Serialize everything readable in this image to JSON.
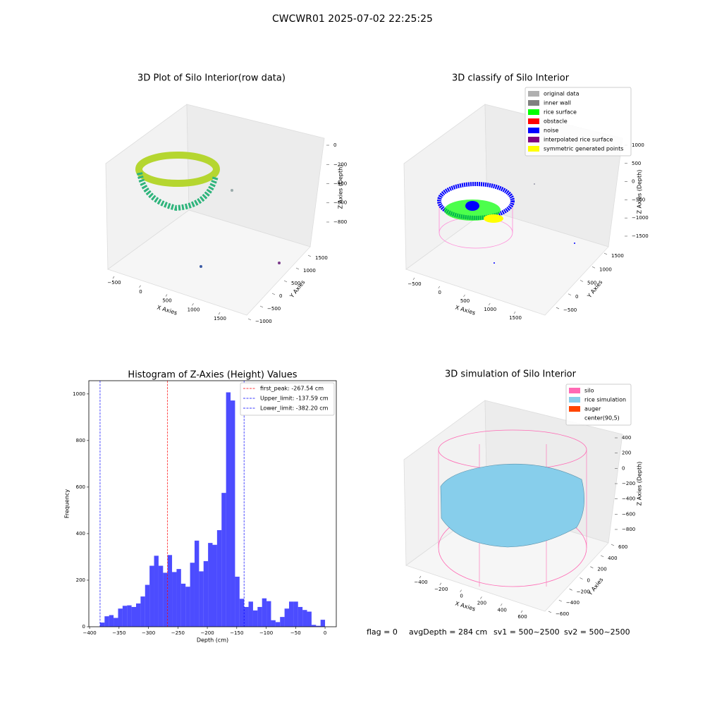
{
  "figure_title": "CWCWR01 2025-07-02 22:25:25",
  "status": [
    "flag = 0",
    "avgDepth = 284 cm",
    "sv1 = 500~2500",
    "sv2 = 500~2500"
  ],
  "chart_data": [
    {
      "type": "scatter3d",
      "title": "3D Plot of Silo Interior(row data)",
      "x_label": "X Axies",
      "y_label": "Y Axies",
      "z_label": "Z Axies (Depth)",
      "xlim": [
        -700,
        1750
      ],
      "ylim": [
        -1100,
        1750
      ],
      "zlim": [
        -900,
        50
      ],
      "xticks": [
        {
          "value": -500,
          "label": "−500"
        },
        0,
        500,
        1000,
        1500
      ],
      "yticks": [
        {
          "value": -1000,
          "label": "−1000"
        },
        {
          "value": -500,
          "label": "−500"
        },
        0,
        500,
        1000,
        1500
      ],
      "zticks": [
        0,
        {
          "value": -200,
          "label": "−200"
        },
        {
          "value": -400,
          "label": "−400"
        },
        {
          "value": -600,
          "label": "−600"
        },
        {
          "value": -800,
          "label": "−800"
        }
      ]
    },
    {
      "type": "scatter3d",
      "title": "3D classify of Silo Interior",
      "x_label": "X Axies",
      "y_label": "Y Axies",
      "z_label": "Z Axies (Depth)",
      "xlim": [
        -700,
        1750
      ],
      "ylim": [
        -800,
        1750
      ],
      "zlim": [
        -1700,
        1300
      ],
      "xticks": [
        {
          "value": -500,
          "label": "−500"
        },
        0,
        500,
        1000,
        1500
      ],
      "yticks": [
        {
          "value": -500,
          "label": "−500"
        },
        0,
        500,
        1000,
        1500
      ],
      "zticks": [
        1000,
        500,
        0,
        {
          "value": -500,
          "label": "−500"
        },
        {
          "value": -1000,
          "label": "−1000"
        },
        {
          "value": -1500,
          "label": "−1500"
        }
      ],
      "legend": [
        {
          "name": "original data",
          "color": "#b0b0b0"
        },
        {
          "name": "inner wall",
          "color": "#808080"
        },
        {
          "name": "rice surface",
          "color": "#00ff00"
        },
        {
          "name": "obstacle",
          "color": "#ff0000"
        },
        {
          "name": "noise",
          "color": "#0000ff"
        },
        {
          "name": "interpolated rice surface",
          "color": "#800080"
        },
        {
          "name": "symmetric generated points",
          "color": "#ffff00"
        }
      ]
    },
    {
      "type": "histogram",
      "title": "Histogram of Z-Axies (Height) Values",
      "x_label": "Depth (cm)",
      "y_label": "Frequency",
      "color": "#0000ff",
      "bins": [
        -382.2,
        -374.56,
        -366.91,
        -359.27,
        -351.62,
        -343.98,
        -336.34,
        -328.69,
        -321.05,
        -313.4,
        -305.76,
        -298.12,
        -290.47,
        -282.83,
        -275.18,
        -267.54,
        -259.9,
        -252.25,
        -244.61,
        -236.96,
        -229.32,
        -221.68,
        -214.03,
        -206.39,
        -198.74,
        -191.1,
        -183.46,
        -175.81,
        -168.17,
        -160.52,
        -152.88,
        -145.24,
        -137.59,
        -129.95,
        -122.3,
        -114.66,
        -107.02,
        -99.37,
        -91.73,
        -84.08,
        -76.44,
        -68.8,
        -61.15,
        -53.51,
        -45.86,
        -38.22,
        -30.58,
        -22.93,
        -15.29,
        -7.64,
        0
      ],
      "values": [
        18,
        45,
        50,
        38,
        78,
        90,
        92,
        85,
        100,
        130,
        180,
        262,
        305,
        262,
        232,
        308,
        235,
        248,
        185,
        172,
        275,
        370,
        238,
        282,
        360,
        352,
        415,
        575,
        1007,
        972,
        215,
        120,
        85,
        108,
        70,
        85,
        122,
        110,
        28,
        20,
        42,
        78,
        108,
        108,
        85,
        72,
        65,
        8,
        4,
        30
      ],
      "xlim": [
        -401.3,
        19.1
      ],
      "ylim": [
        0,
        1057
      ],
      "xticks": [
        {
          "value": -400,
          "label": "−400"
        },
        {
          "value": -350,
          "label": "−350"
        },
        {
          "value": -300,
          "label": "−300"
        },
        {
          "value": -250,
          "label": "−250"
        },
        {
          "value": -200,
          "label": "−200"
        },
        {
          "value": -150,
          "label": "−150"
        },
        {
          "value": -100,
          "label": "−100"
        },
        {
          "value": -50,
          "label": "−50"
        },
        0
      ],
      "yticks": [
        0,
        200,
        400,
        600,
        800,
        1000
      ],
      "vlines": [
        {
          "name": "first_peak: -267.54 cm",
          "value": -267.54,
          "color": "#ff0000"
        },
        {
          "name": "Upper_limit: -137.59 cm",
          "value": -137.59,
          "color": "#0000ff"
        },
        {
          "name": "Lower_limit: -382.20 cm",
          "value": -382.2,
          "color": "#0000ff"
        }
      ]
    },
    {
      "type": "surface3d",
      "title": "3D simulation of Silo Interior",
      "x_label": "X Axies",
      "y_label": "Y Axies",
      "z_label": "Z Axies (Depth)",
      "xlim": [
        -550,
        750
      ],
      "ylim": [
        -700,
        700
      ],
      "zlim": [
        -900,
        500
      ],
      "xticks": [
        {
          "value": -400,
          "label": "−400"
        },
        {
          "value": -200,
          "label": "−200"
        },
        0,
        200,
        400,
        600
      ],
      "yticks": [
        {
          "value": -600,
          "label": "−600"
        },
        {
          "value": -400,
          "label": "−400"
        },
        {
          "value": -200,
          "label": "−200"
        },
        0,
        200,
        400,
        600
      ],
      "zticks": [
        400,
        200,
        0,
        {
          "value": -200,
          "label": "−200"
        },
        {
          "value": -400,
          "label": "−400"
        },
        {
          "value": -600,
          "label": "−600"
        },
        {
          "value": -800,
          "label": "−800"
        }
      ],
      "legend": [
        {
          "name": "silo",
          "color": "#ff69b4"
        },
        {
          "name": "rice simulation",
          "color": "#87ceeb"
        },
        {
          "name": "auger",
          "color": "#ff4500"
        },
        {
          "name": "center(90,5)"
        }
      ]
    }
  ]
}
